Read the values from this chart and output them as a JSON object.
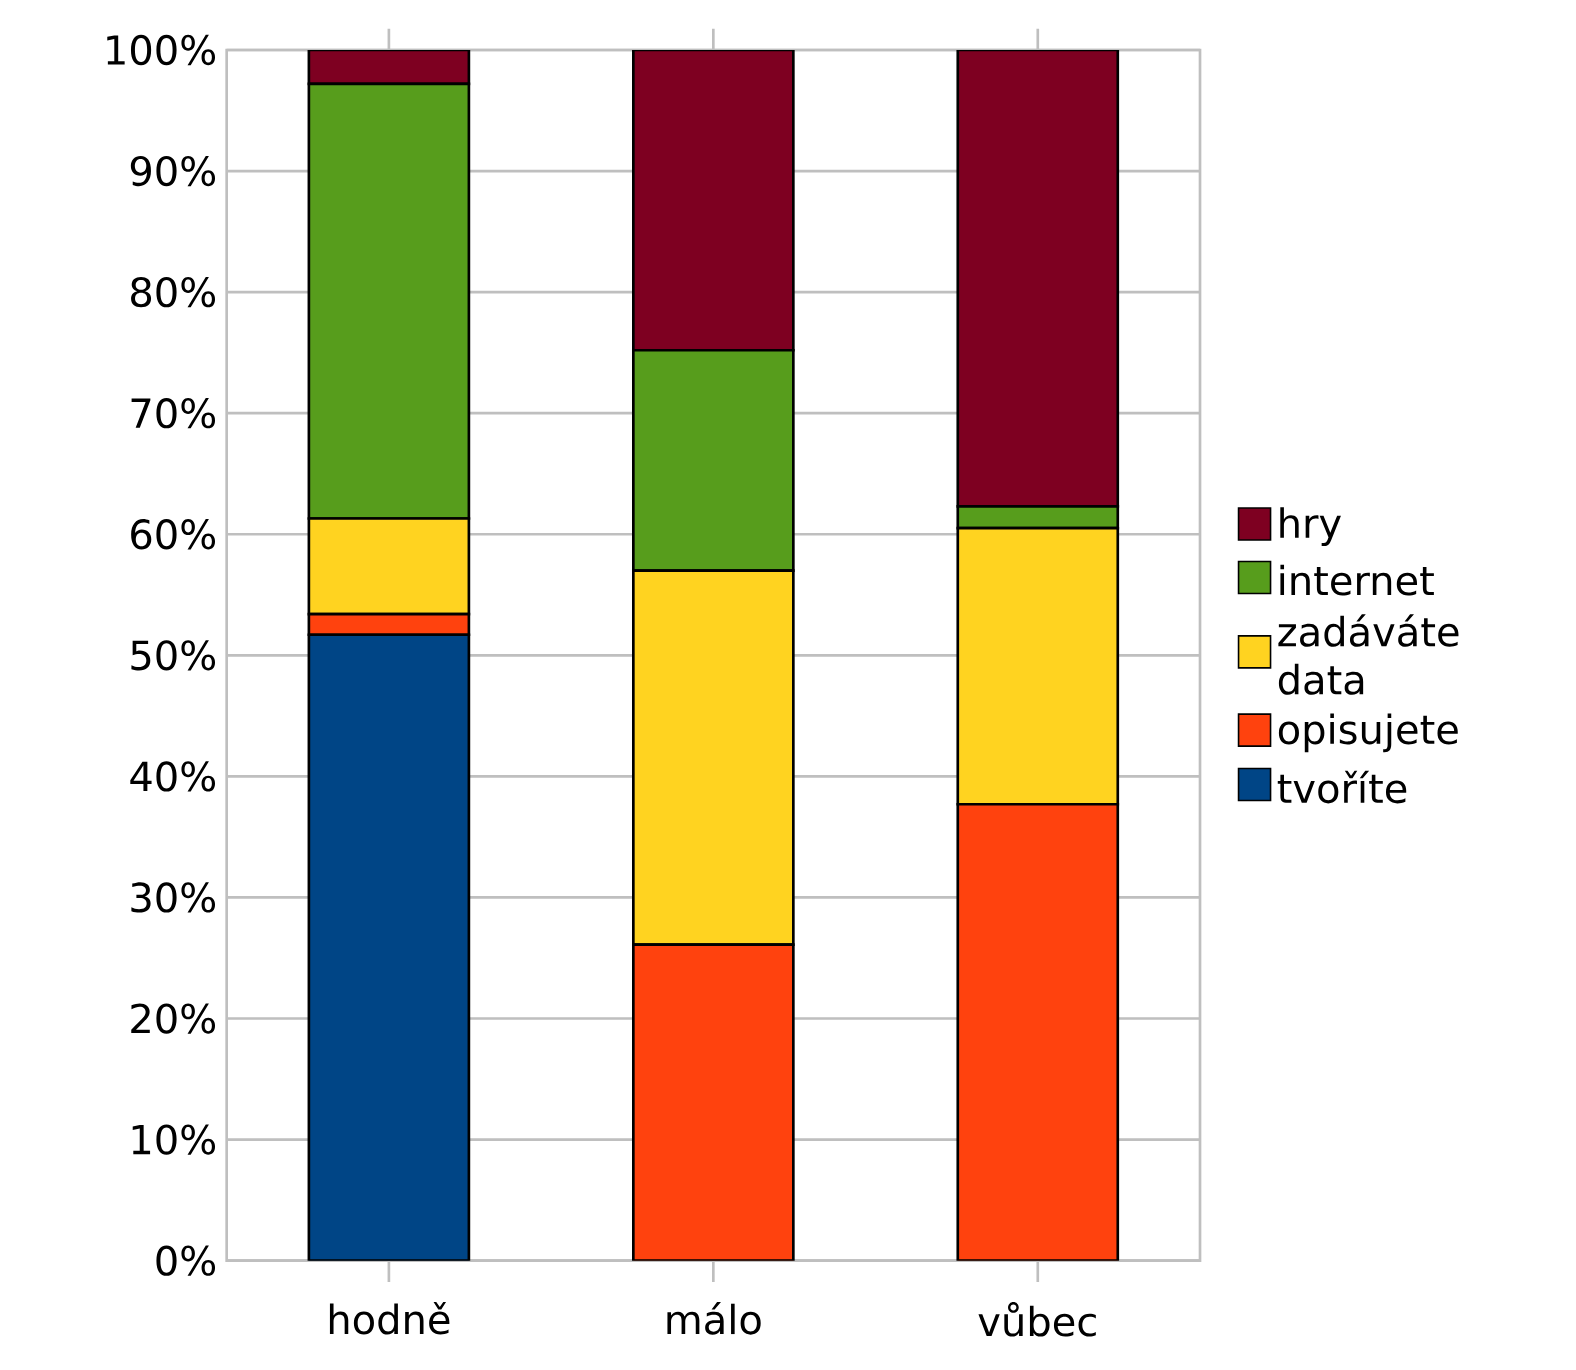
{
  "chart_data": {
    "type": "bar",
    "stacked": true,
    "categories": [
      "hodně",
      "málo",
      "vůbec"
    ],
    "series": [
      {
        "name": "tvoříte",
        "color": "#004586",
        "values": [
          51.7,
          0,
          0
        ]
      },
      {
        "name": "opisujete",
        "color": "#ff420e",
        "values": [
          1.7,
          26.1,
          37.7
        ]
      },
      {
        "name": "zadáváte data",
        "color": "#ffd320",
        "values": [
          7.9,
          30.9,
          22.8
        ]
      },
      {
        "name": "internet",
        "color": "#579d1c",
        "values": [
          35.9,
          18.2,
          1.8
        ]
      },
      {
        "name": "hry",
        "color": "#7e0021",
        "values": [
          2.8,
          24.8,
          37.7
        ]
      }
    ],
    "ylim": [
      0,
      100
    ],
    "yticks": [
      {
        "value": 0,
        "label": "0%"
      },
      {
        "value": 10,
        "label": "10%"
      },
      {
        "value": 20,
        "label": "20%"
      },
      {
        "value": 30,
        "label": "30%"
      },
      {
        "value": 40,
        "label": "40%"
      },
      {
        "value": 50,
        "label": "50%"
      },
      {
        "value": 60,
        "label": "60%"
      },
      {
        "value": 70,
        "label": "70%"
      },
      {
        "value": 80,
        "label": "80%"
      },
      {
        "value": 90,
        "label": "90%"
      },
      {
        "value": 100,
        "label": "100%"
      }
    ],
    "grid": "y",
    "legend": "right"
  }
}
